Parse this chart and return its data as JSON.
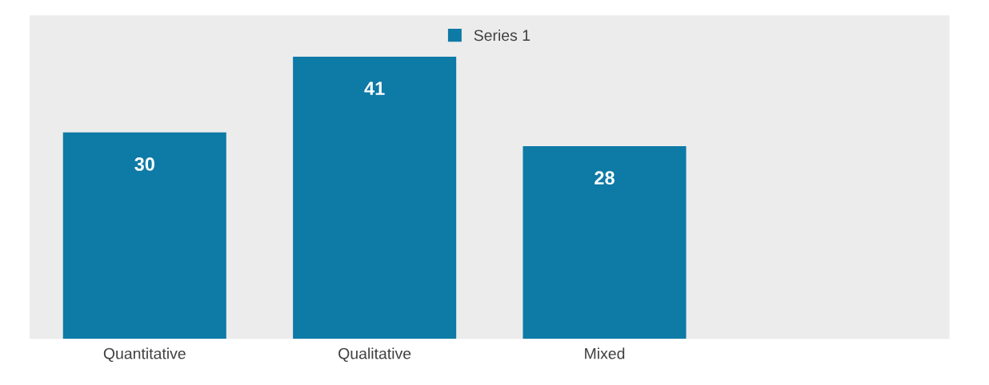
{
  "chart_data": {
    "type": "bar",
    "categories": [
      "Quantitative",
      "Qualitative",
      "Mixed",
      null
    ],
    "series": [
      {
        "name": "Series 1",
        "color": "#0e7aa6",
        "values": [
          30,
          41,
          28,
          null
        ]
      }
    ],
    "ylim": [
      0,
      47
    ],
    "tick_labels": "x",
    "data_labels": true,
    "legend": "top",
    "grid": false
  }
}
